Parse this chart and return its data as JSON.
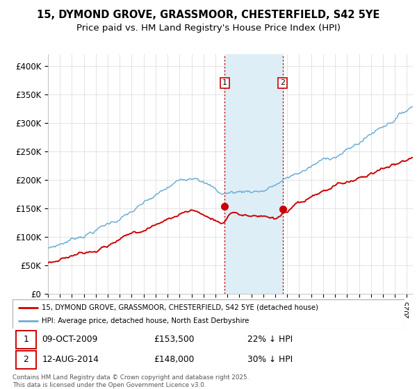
{
  "title": "15, DYMOND GROVE, GRASSMOOR, CHESTERFIELD, S42 5YE",
  "subtitle": "Price paid vs. HM Land Registry's House Price Index (HPI)",
  "ylabel_ticks": [
    "£0",
    "£50K",
    "£100K",
    "£150K",
    "£200K",
    "£250K",
    "£300K",
    "£350K",
    "£400K"
  ],
  "ytick_vals": [
    0,
    50000,
    100000,
    150000,
    200000,
    250000,
    300000,
    350000,
    400000
  ],
  "ylim": [
    0,
    420000
  ],
  "xlim_start": 1995.0,
  "xlim_end": 2025.5,
  "sale1_x": 2009.77,
  "sale1_y": 153500,
  "sale2_x": 2014.62,
  "sale2_y": 148000,
  "shade_x1": 2009.77,
  "shade_x2": 2014.62,
  "legend1": "15, DYMOND GROVE, GRASSMOOR, CHESTERFIELD, S42 5YE (detached house)",
  "legend2": "HPI: Average price, detached house, North East Derbyshire",
  "sale1_date": "09-OCT-2009",
  "sale1_price": "£153,500",
  "sale1_pct": "22% ↓ HPI",
  "sale2_date": "12-AUG-2014",
  "sale2_price": "£148,000",
  "sale2_pct": "30% ↓ HPI",
  "footer": "Contains HM Land Registry data © Crown copyright and database right 2025.\nThis data is licensed under the Open Government Licence v3.0.",
  "hpi_color": "#6baed6",
  "price_color": "#cc0000",
  "shade_color": "#ddeef7",
  "bg_color": "#ffffff",
  "grid_color": "#d8d8d8",
  "title_fontsize": 10.5,
  "subtitle_fontsize": 9.5,
  "label_color_box": "#cc0000"
}
